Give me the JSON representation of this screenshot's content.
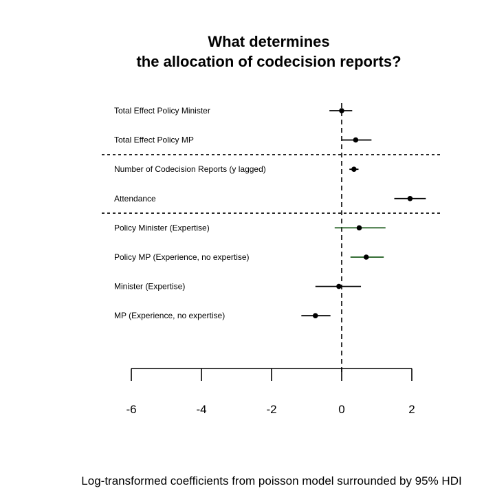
{
  "chart_data": {
    "type": "forest",
    "title_line1": "What determines",
    "title_line2": "the allocation of codecision reports?",
    "xlabel": "Log-transformed coefficients from poisson model surrounded by 95% HDI",
    "xlim": [
      -6,
      2
    ],
    "xticks": [
      -6,
      -4,
      -2,
      0,
      2
    ],
    "reference_line": 0,
    "groups": [
      {
        "name": "group-1",
        "items": [
          {
            "label": "Total Effect Policy Minister",
            "estimate": 0.0,
            "lower": -0.35,
            "upper": 0.3
          },
          {
            "label": "Total Effect Policy MP",
            "estimate": 0.4,
            "lower": 0.0,
            "upper": 0.85
          }
        ]
      },
      {
        "name": "group-2",
        "items": [
          {
            "label": "Number of Codecision Reports (y lagged)",
            "estimate": 0.35,
            "lower": 0.22,
            "upper": 0.48
          },
          {
            "label": "Attendance",
            "estimate": 1.95,
            "lower": 1.5,
            "upper": 2.4
          }
        ]
      },
      {
        "name": "group-3",
        "items": [
          {
            "label": "Policy Minister (Expertise)",
            "estimate": 0.5,
            "lower": -0.2,
            "upper": 1.25,
            "color": "#1a5a1a"
          },
          {
            "label": "Policy MP (Experience, no expertise)",
            "estimate": 0.7,
            "lower": 0.25,
            "upper": 1.2,
            "color": "#1a5a1a"
          },
          {
            "label": "Minister (Expertise)",
            "estimate": -0.08,
            "lower": -0.75,
            "upper": 0.55
          },
          {
            "label": "MP (Experience, no expertise)",
            "estimate": -0.75,
            "lower": -1.15,
            "upper": -0.32
          }
        ]
      }
    ],
    "colors": {
      "point": "#000000",
      "interval": "#000000",
      "separator": "#000000"
    }
  }
}
